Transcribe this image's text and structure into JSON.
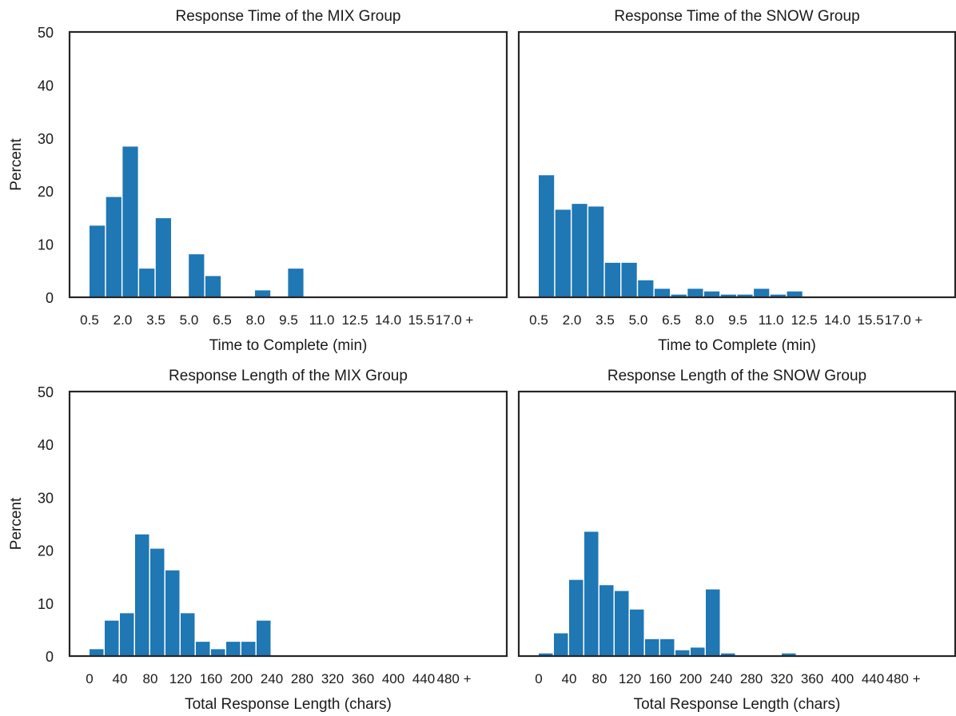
{
  "colors": {
    "bar": "#1f77b4",
    "frame": "#262626",
    "text": "#1a1a1a"
  },
  "chart_data": [
    {
      "type": "bar",
      "title": "Response Time of the MIX Group",
      "xlabel": "Time to Complete (min)",
      "ylabel": "Percent",
      "ylim": [
        0,
        50
      ],
      "yticks": [
        0,
        10,
        20,
        30,
        40,
        50
      ],
      "xticks": [
        "0.5",
        "2.0",
        "3.5",
        "5.0",
        "6.5",
        "8.0",
        "9.5",
        "11.0",
        "12.5",
        "14.0",
        "15.5",
        "17.0 +"
      ],
      "bin_width": 0.75,
      "bin_start": 0.5,
      "values": [
        13.5,
        18.9,
        28.4,
        5.4,
        14.9,
        0,
        8.1,
        4.0,
        0,
        0,
        1.3,
        0,
        5.4,
        0,
        0,
        0,
        0,
        0,
        0,
        0,
        0,
        0,
        0
      ],
      "show_ylabel": true
    },
    {
      "type": "bar",
      "title": "Response Time of the SNOW Group",
      "xlabel": "Time to Complete (min)",
      "ylabel": "",
      "ylim": [
        0,
        50
      ],
      "yticks": [
        0,
        10,
        20,
        30,
        40,
        50
      ],
      "xticks": [
        "0.5",
        "2.0",
        "3.5",
        "5.0",
        "6.5",
        "8.0",
        "9.5",
        "11.0",
        "12.5",
        "14.0",
        "15.5",
        "17.0 +"
      ],
      "bin_width": 0.75,
      "bin_start": 0.5,
      "values": [
        23.0,
        16.5,
        17.6,
        17.1,
        6.5,
        6.5,
        3.2,
        1.6,
        0.5,
        1.6,
        1.1,
        0.5,
        0.5,
        1.6,
        0.5,
        1.1,
        0,
        0,
        0,
        0,
        0,
        0,
        0
      ],
      "show_ylabel": false
    },
    {
      "type": "bar",
      "title": "Response Length of the MIX Group",
      "xlabel": "Total Response Length (chars)",
      "ylabel": "Percent",
      "ylim": [
        0,
        50
      ],
      "yticks": [
        0,
        10,
        20,
        30,
        40,
        50
      ],
      "xticks": [
        "0",
        "40",
        "80",
        "120",
        "160",
        "200",
        "240",
        "280",
        "320",
        "360",
        "400",
        "440",
        "480 +"
      ],
      "bin_width": 20,
      "bin_start": 0,
      "values": [
        1.3,
        6.7,
        8.1,
        23.0,
        20.3,
        16.2,
        8.1,
        2.7,
        1.3,
        2.7,
        2.7,
        6.7,
        0,
        0,
        0,
        0,
        0,
        0,
        0,
        0,
        0,
        0,
        0,
        0,
        0
      ],
      "show_ylabel": true
    },
    {
      "type": "bar",
      "title": "Response Length of the SNOW Group",
      "xlabel": "Total Response Length (chars)",
      "ylabel": "",
      "ylim": [
        0,
        50
      ],
      "yticks": [
        0,
        10,
        20,
        30,
        40,
        50
      ],
      "xticks": [
        "0",
        "40",
        "80",
        "120",
        "160",
        "200",
        "240",
        "280",
        "320",
        "360",
        "400",
        "440",
        "480 +"
      ],
      "bin_width": 20,
      "bin_start": 0,
      "values": [
        0.5,
        4.3,
        14.4,
        23.5,
        13.4,
        12.3,
        8.8,
        3.2,
        3.2,
        1.1,
        1.6,
        12.6,
        0.5,
        0,
        0,
        0,
        0.5,
        0,
        0,
        0,
        0,
        0,
        0,
        0,
        0
      ],
      "show_ylabel": false
    }
  ]
}
